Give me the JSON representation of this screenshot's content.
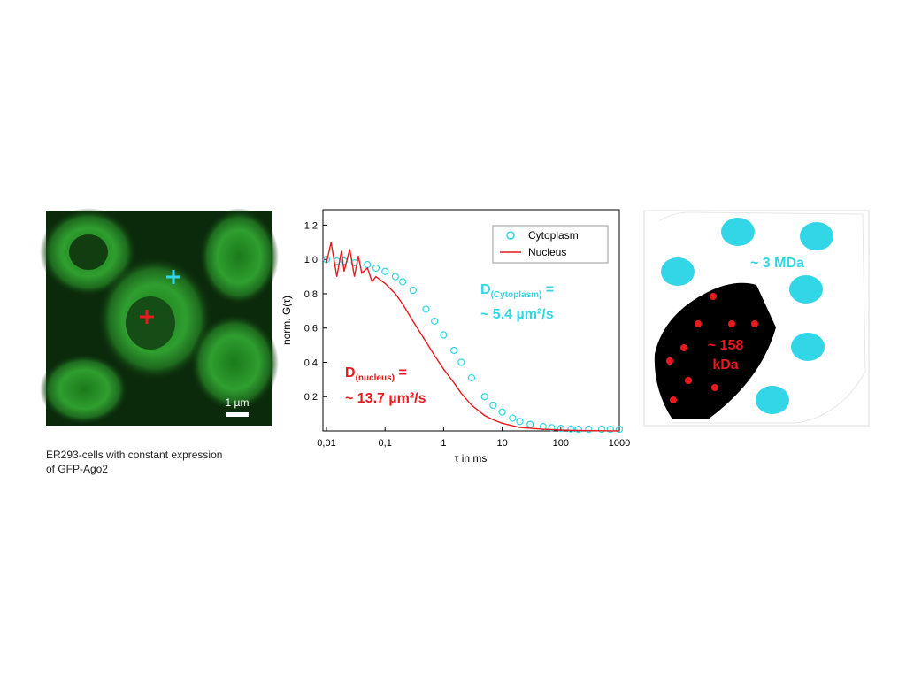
{
  "chart_data": {
    "type": "line",
    "xlabel": "τ in ms",
    "ylabel": "norm. G(τ)",
    "xscale": "log",
    "xlim": [
      0.0087,
      1000
    ],
    "xticks": [
      {
        "value": 0.01,
        "label": "0,01"
      },
      {
        "value": 0.1,
        "label": "0,1"
      },
      1,
      10,
      100,
      1000
    ],
    "ylim": [
      0,
      1.29
    ],
    "yticks": [
      {
        "value": 0.2,
        "label": "0,2"
      },
      {
        "value": 0.4,
        "label": "0,4"
      },
      {
        "value": 0.6,
        "label": "0,6"
      },
      {
        "value": 0.8,
        "label": "0,8"
      },
      {
        "value": 1.0,
        "label": "1,0"
      },
      {
        "value": 1.2,
        "label": "1,2"
      }
    ],
    "legend": "upper right",
    "series": [
      {
        "name": "Cytoplasm",
        "color": "#33d6e6",
        "marker": "circle",
        "x": [
          0.01,
          0.015,
          0.02,
          0.03,
          0.05,
          0.07,
          0.1,
          0.15,
          0.2,
          0.3,
          0.5,
          0.7,
          1,
          1.5,
          2,
          3,
          5,
          7,
          10,
          15,
          20,
          30,
          50,
          70,
          100,
          150,
          200,
          300,
          500,
          700,
          1000
        ],
        "values": [
          1.0,
          0.99,
          0.99,
          0.98,
          0.97,
          0.95,
          0.93,
          0.9,
          0.87,
          0.82,
          0.71,
          0.64,
          0.56,
          0.47,
          0.4,
          0.31,
          0.2,
          0.15,
          0.11,
          0.075,
          0.055,
          0.038,
          0.025,
          0.019,
          0.015,
          0.012,
          0.01,
          0.01,
          0.01,
          0.01,
          0.01
        ]
      },
      {
        "name": "Nucleus",
        "color": "#e8191f",
        "marker": "line",
        "x": [
          0.01,
          0.012,
          0.015,
          0.018,
          0.02,
          0.025,
          0.03,
          0.035,
          0.04,
          0.05,
          0.06,
          0.07,
          0.1,
          0.15,
          0.2,
          0.3,
          0.5,
          0.7,
          1,
          1.5,
          2,
          3,
          5,
          7,
          10,
          20,
          50,
          100,
          200,
          500,
          1000
        ],
        "values": [
          0.98,
          1.1,
          0.9,
          1.05,
          0.93,
          1.06,
          0.9,
          1.02,
          0.92,
          0.95,
          0.87,
          0.9,
          0.86,
          0.8,
          0.74,
          0.64,
          0.52,
          0.44,
          0.36,
          0.28,
          0.22,
          0.15,
          0.09,
          0.065,
          0.045,
          0.02,
          0.01,
          0.005,
          0.003,
          0.001,
          0.0
        ]
      }
    ],
    "annotations": [
      {
        "base": "D",
        "sub": "(Cytoplasm)",
        "rest": " =",
        "line2": "~ 5.4 µm²/s",
        "color": "#33d6e6"
      },
      {
        "base": "D",
        "sub": "(nucleus)",
        "rest": " =",
        "line2": "~ 13.7 µm²/s",
        "color": "#e8191f"
      }
    ]
  },
  "image_panel": {
    "scale_bar": "1 µm",
    "caption": [
      "ER293-cells with constant expression",
      "of GFP-Ago2"
    ]
  },
  "diagram": {
    "outer_label": "~ 3 MDa",
    "inner_label": [
      "~ 158",
      "kDa"
    ]
  }
}
